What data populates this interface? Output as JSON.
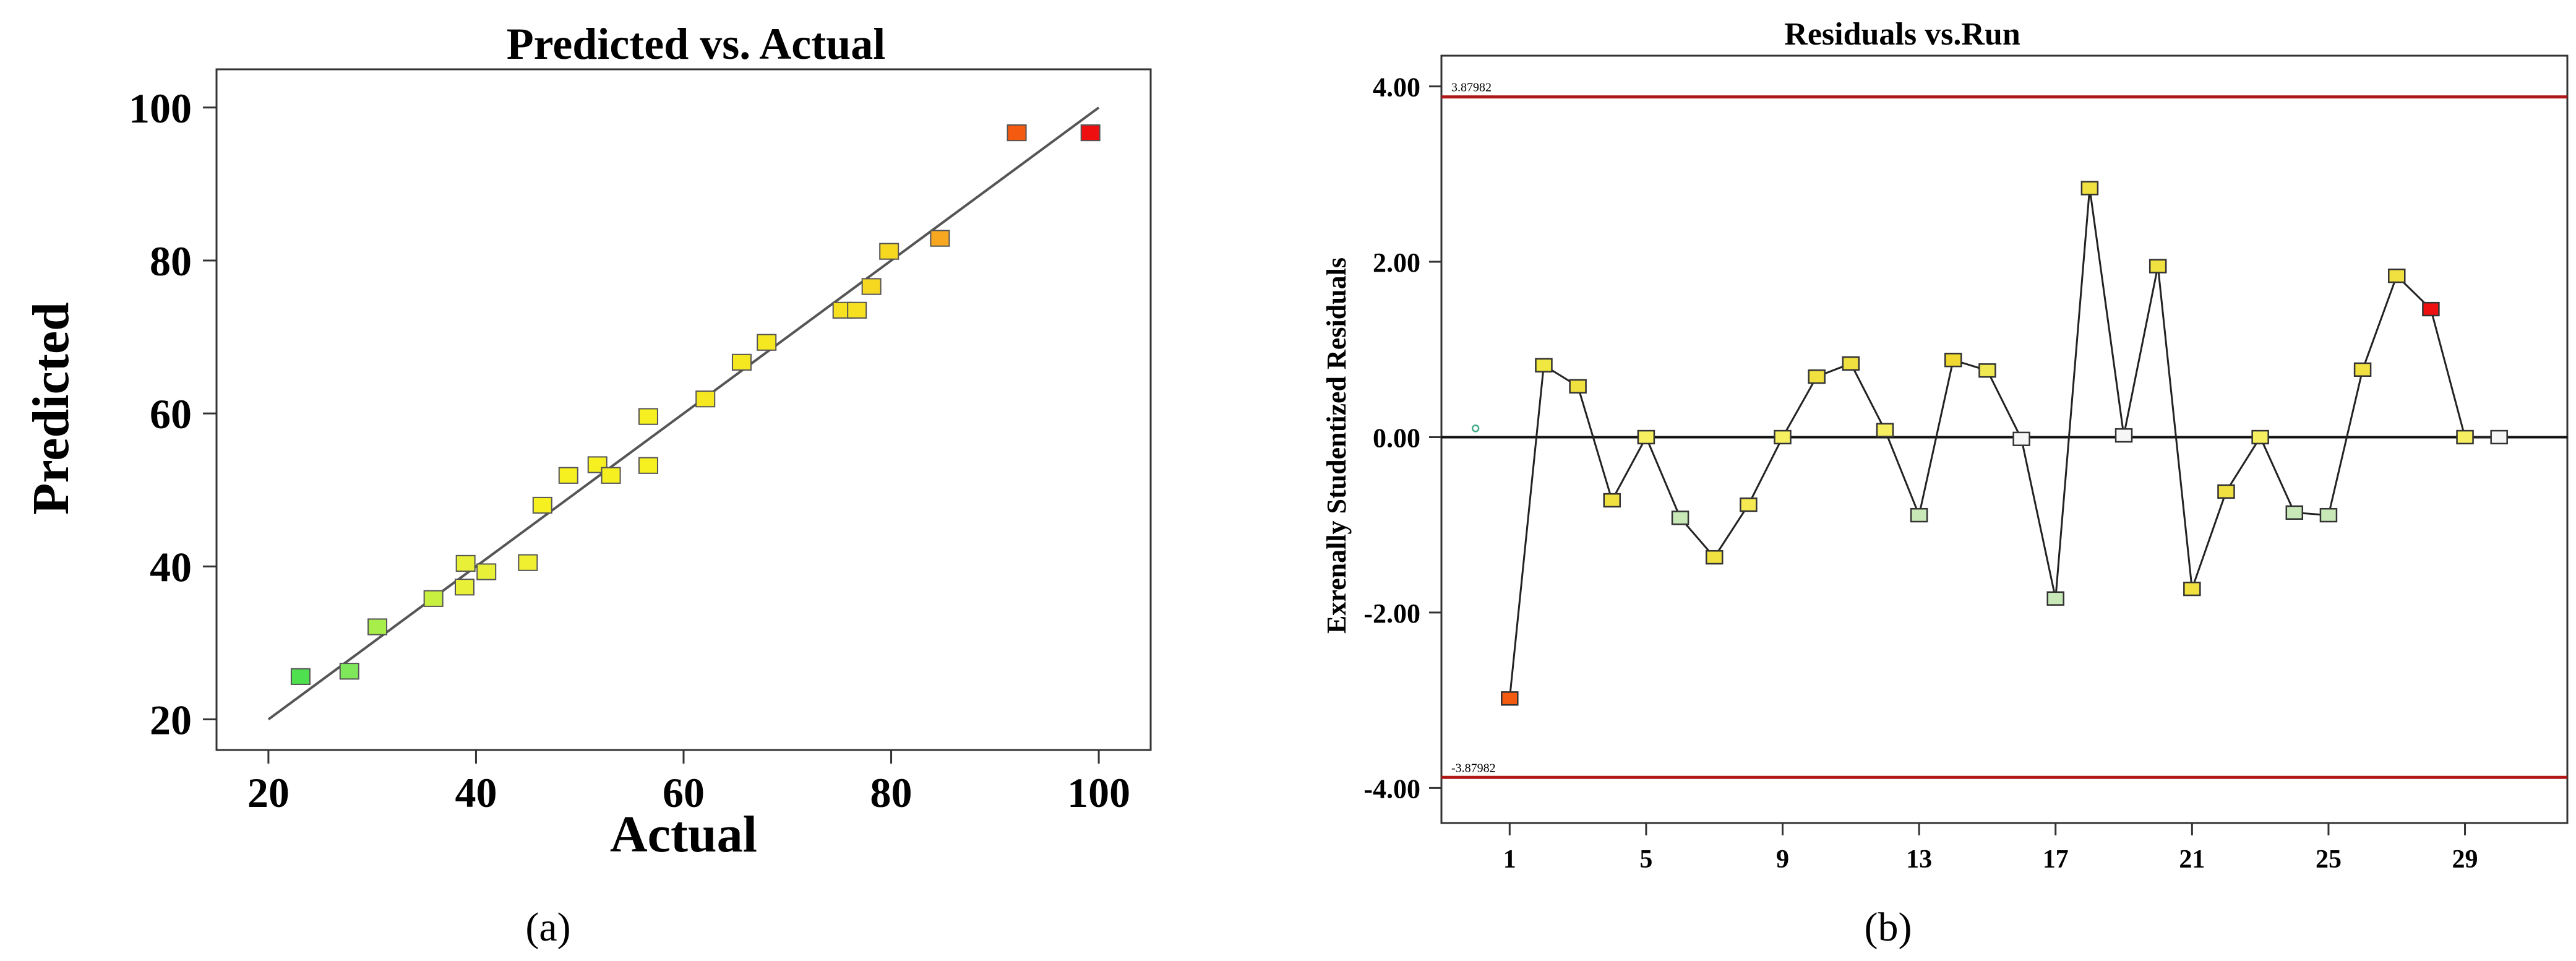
{
  "chart_data": [
    {
      "type": "scatter",
      "panel_label": "(a)",
      "title": "Predicted vs. Actual",
      "xlabel": "Actual",
      "ylabel": "Predicted",
      "xlim": [
        15,
        105
      ],
      "ylim": [
        16,
        105
      ],
      "xticks": [
        20,
        40,
        60,
        80,
        100
      ],
      "yticks": [
        20,
        40,
        60,
        80,
        100
      ],
      "reference_line": {
        "from": [
          20,
          20
        ],
        "to": [
          100,
          100
        ]
      },
      "points": [
        {
          "x": 23.1,
          "y": 25.6,
          "color": "#4ee04e"
        },
        {
          "x": 27.8,
          "y": 26.3,
          "color": "#7fe85a"
        },
        {
          "x": 30.5,
          "y": 32.1,
          "color": "#a8ee4a"
        },
        {
          "x": 35.9,
          "y": 35.8,
          "color": "#c8f040"
        },
        {
          "x": 38.9,
          "y": 37.3,
          "color": "#e8f038"
        },
        {
          "x": 39.0,
          "y": 40.4,
          "color": "#e8f038"
        },
        {
          "x": 41.0,
          "y": 39.3,
          "color": "#e8f038"
        },
        {
          "x": 45.0,
          "y": 40.5,
          "color": "#f0f030"
        },
        {
          "x": 46.4,
          "y": 48.0,
          "color": "#f6f020"
        },
        {
          "x": 48.9,
          "y": 51.9,
          "color": "#f6f020"
        },
        {
          "x": 51.7,
          "y": 53.3,
          "color": "#f6f020"
        },
        {
          "x": 53.0,
          "y": 51.9,
          "color": "#f6f020"
        },
        {
          "x": 56.6,
          "y": 59.6,
          "color": "#f6f020"
        },
        {
          "x": 56.6,
          "y": 53.2,
          "color": "#f6f020"
        },
        {
          "x": 62.1,
          "y": 61.9,
          "color": "#f6e820"
        },
        {
          "x": 65.6,
          "y": 66.7,
          "color": "#f6e820"
        },
        {
          "x": 68.0,
          "y": 69.3,
          "color": "#f6e820"
        },
        {
          "x": 75.3,
          "y": 73.5,
          "color": "#f6e020"
        },
        {
          "x": 76.7,
          "y": 73.5,
          "color": "#f6e020"
        },
        {
          "x": 78.1,
          "y": 76.6,
          "color": "#f6d820"
        },
        {
          "x": 79.8,
          "y": 81.2,
          "color": "#f6d820"
        },
        {
          "x": 84.7,
          "y": 82.9,
          "color": "#f8a820"
        },
        {
          "x": 92.1,
          "y": 96.7,
          "color": "#f45a10"
        },
        {
          "x": 99.2,
          "y": 96.7,
          "color": "#ee1010"
        }
      ]
    },
    {
      "type": "line",
      "panel_label": "(b)",
      "title": "Residuals vs.Run",
      "xlabel": "",
      "ylabel": "Exrenally Studentized Residuals",
      "xlim": [
        -1,
        32
      ],
      "ylim": [
        -4.4,
        4.35
      ],
      "xticks": [
        1,
        5,
        9,
        13,
        17,
        21,
        25,
        29
      ],
      "yticks": [
        4.0,
        2.0,
        0.0,
        -2.0,
        -4.0
      ],
      "ytick_labels": [
        "4.00",
        "2.00",
        "0.00",
        "-2.00",
        "-4.00"
      ],
      "limit_lines": [
        {
          "value": 3.87982,
          "label": "3.87982",
          "color": "#b01818"
        },
        {
          "value": -3.87982,
          "label": "-3.87982",
          "color": "#b01818"
        }
      ],
      "zero_line": 0,
      "stray_marker": {
        "run": 0,
        "value": 0.1,
        "color": "#44aa88"
      },
      "runs": [
        1,
        2,
        3,
        4,
        5,
        6,
        7,
        8,
        9,
        10,
        11,
        12,
        13,
        14,
        15,
        16,
        17,
        18,
        19,
        20,
        21,
        22,
        23,
        24,
        25,
        26,
        27,
        28,
        29,
        30
      ],
      "values": [
        -2.98,
        0.82,
        0.58,
        -0.72,
        0.0,
        -0.92,
        -1.37,
        -0.77,
        0.0,
        0.69,
        0.84,
        0.08,
        -0.89,
        0.88,
        0.76,
        -0.02,
        -1.84,
        2.84,
        0.02,
        1.95,
        -1.73,
        -0.62,
        0.0,
        -0.86,
        -0.89,
        0.77,
        1.84,
        1.46,
        0.0,
        0.0
      ],
      "colors": [
        "#f45a10",
        "#f0e840",
        "#f0e040",
        "#f0e040",
        "#f6f060",
        "#c8e8b8",
        "#f0e040",
        "#f6e850",
        "#f6f060",
        "#f0e040",
        "#f0e040",
        "#f6f060",
        "#c8e8b8",
        "#f0d830",
        "#f0e850",
        "#f6f6f6",
        "#c8e8b8",
        "#f0e040",
        "#f6f6f6",
        "#f0e040",
        "#f0e040",
        "#f0e040",
        "#f6f060",
        "#c8e8b8",
        "#c8e8b8",
        "#f0e040",
        "#f0e040",
        "#ee1010",
        "#f6f060",
        "#f6f6f6"
      ]
    }
  ]
}
